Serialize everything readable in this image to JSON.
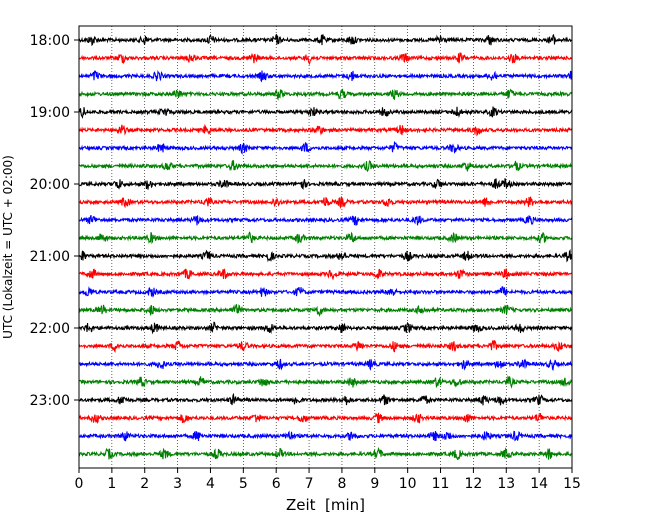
{
  "chart_data": {
    "type": "line",
    "title": "",
    "xlabel": "Zeit  [min]",
    "ylabel": "UTC (Lokalzeit = UTC + 02:00)",
    "xlim": [
      0,
      15
    ],
    "x_ticks": [
      "0",
      "1",
      "2",
      "3",
      "4",
      "5",
      "6",
      "7",
      "8",
      "9",
      "10",
      "11",
      "12",
      "13",
      "14",
      "15"
    ],
    "y_tick_labels": [
      "18:00",
      "19:00",
      "20:00",
      "21:00",
      "22:00",
      "23:00"
    ],
    "grid": "vertical dotted",
    "trace_interval_minutes": 15,
    "trace_color_cycle": [
      "#000000",
      "#ff0000",
      "#0000ff",
      "#008000"
    ],
    "series": [
      {
        "start": "18:00",
        "burst_minutes": [
          0.4,
          2.0,
          4.0,
          6.0,
          7.4,
          8.3,
          11.0,
          12.5,
          14.4
        ]
      },
      {
        "start": "18:15",
        "burst_minutes": [
          1.3,
          3.4,
          5.3,
          7.0,
          9.9,
          11.6,
          13.2
        ]
      },
      {
        "start": "18:30",
        "burst_minutes": [
          0.5,
          2.4,
          5.6,
          8.3,
          12.6,
          15.0
        ]
      },
      {
        "start": "18:45",
        "burst_minutes": [
          3.0,
          6.1,
          8.0,
          9.6,
          13.1
        ]
      },
      {
        "start": "19:00",
        "burst_minutes": [
          0.1,
          2.6,
          7.1,
          9.3,
          11.5,
          12.6
        ]
      },
      {
        "start": "19:15",
        "burst_minutes": [
          1.3,
          3.9,
          7.3,
          9.8,
          12.1
        ]
      },
      {
        "start": "19:30",
        "burst_minutes": [
          2.5,
          5.0,
          6.9,
          9.6,
          11.4
        ]
      },
      {
        "start": "19:45",
        "burst_minutes": [
          2.7,
          4.7,
          8.8,
          11.8,
          13.3
        ]
      },
      {
        "start": "20:00",
        "burst_minutes": [
          1.2,
          2.1,
          4.4,
          6.8,
          10.9,
          12.7,
          13.0
        ]
      },
      {
        "start": "20:15",
        "burst_minutes": [
          1.4,
          3.9,
          6.0,
          7.5,
          8.0,
          9.4,
          12.4,
          13.7
        ]
      },
      {
        "start": "20:30",
        "burst_minutes": [
          0.4,
          3.6,
          8.4,
          10.3,
          13.7
        ]
      },
      {
        "start": "20:45",
        "burst_minutes": [
          0.7,
          2.2,
          5.2,
          6.7,
          8.3,
          11.4,
          14.1
        ]
      },
      {
        "start": "21:00",
        "burst_minutes": [
          0.1,
          3.9,
          5.8,
          8.0,
          10.0,
          11.8,
          14.9
        ]
      },
      {
        "start": "21:15",
        "burst_minutes": [
          0.4,
          3.3,
          4.4,
          7.7,
          9.1,
          11.6,
          13.0
        ]
      },
      {
        "start": "21:30",
        "burst_minutes": [
          0.3,
          2.2,
          5.6,
          6.7,
          9.5,
          12.9
        ]
      },
      {
        "start": "21:45",
        "burst_minutes": [
          0.7,
          2.2,
          4.8,
          7.3,
          10.4,
          13.0
        ]
      },
      {
        "start": "22:00",
        "burst_minutes": [
          0.3,
          2.3,
          4.1,
          5.8,
          8.0,
          10.0,
          12.1,
          13.4
        ]
      },
      {
        "start": "22:15",
        "burst_minutes": [
          1.1,
          3.0,
          5.0,
          8.5,
          9.6,
          11.4,
          12.6,
          14.6
        ]
      },
      {
        "start": "22:30",
        "burst_minutes": [
          2.5,
          6.1,
          8.9,
          11.7,
          12.8,
          13.5,
          14.4
        ]
      },
      {
        "start": "22:45",
        "burst_minutes": [
          1.9,
          3.7,
          5.6,
          8.3,
          10.9,
          11.5,
          13.1,
          14.8
        ]
      },
      {
        "start": "23:00",
        "burst_minutes": [
          1.3,
          4.7,
          6.6,
          8.1,
          9.3,
          10.5,
          12.3,
          12.8,
          14.0
        ]
      },
      {
        "start": "23:15",
        "burst_minutes": [
          0.5,
          3.2,
          5.4,
          6.8,
          9.1,
          10.3,
          11.8,
          14.0
        ]
      },
      {
        "start": "23:30",
        "burst_minutes": [
          1.4,
          3.6,
          6.4,
          8.3,
          10.8,
          11.2,
          12.4,
          13.3
        ]
      },
      {
        "start": "23:45",
        "burst_minutes": [
          0.9,
          2.6,
          4.2,
          6.1,
          9.1,
          11.5,
          13.0,
          14.3
        ]
      }
    ]
  }
}
